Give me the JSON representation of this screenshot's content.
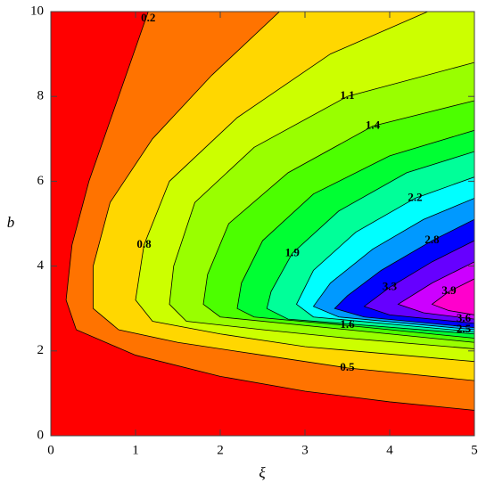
{
  "chart_data": {
    "type": "contour",
    "x_label": "ξ",
    "y_label": "b",
    "xlim": [
      0,
      5
    ],
    "ylim": [
      0,
      10
    ],
    "xticks": [
      0,
      1,
      2,
      3,
      4,
      5
    ],
    "yticks": [
      0,
      2,
      4,
      6,
      8,
      10
    ],
    "background_color": "#ff0000",
    "contours": [
      {
        "level": 0.2,
        "color": "#ff7300",
        "x": [
          1.15,
          0.8,
          0.45,
          0.25,
          0.18,
          0.3,
          1,
          2,
          3,
          4,
          5
        ],
        "y": [
          10,
          8,
          6,
          4.5,
          3.2,
          2.5,
          1.9,
          1.4,
          1.05,
          0.8,
          0.6
        ]
      },
      {
        "level": 0.5,
        "color": "#ffd700",
        "x": [
          2.7,
          1.9,
          1.2,
          0.7,
          0.5,
          0.5,
          0.8,
          1.5,
          2.5,
          3.5,
          5
        ],
        "y": [
          10,
          8.5,
          7,
          5.5,
          4,
          3,
          2.5,
          2.2,
          1.9,
          1.6,
          1.3
        ]
      },
      {
        "level": 0.8,
        "color": "#ccff00",
        "x": [
          4.45,
          3.3,
          2.2,
          1.4,
          1.1,
          1.0,
          1.2,
          2,
          3,
          5
        ],
        "y": [
          10,
          9,
          7.5,
          6,
          4.5,
          3.2,
          2.7,
          2.4,
          2.1,
          1.75
        ]
      },
      {
        "level": 1.1,
        "color": "#99ff00",
        "x": [
          5,
          3.5,
          2.4,
          1.7,
          1.45,
          1.4,
          1.6,
          2.5,
          3.5,
          5
        ],
        "y": [
          8.8,
          8,
          6.8,
          5.5,
          4,
          3.1,
          2.7,
          2.5,
          2.3,
          2.05
        ]
      },
      {
        "level": 1.4,
        "color": "#4cff00",
        "x": [
          5,
          3.8,
          2.8,
          2.1,
          1.85,
          1.8,
          2,
          3,
          5
        ],
        "y": [
          7.9,
          7.3,
          6.2,
          5,
          3.8,
          3.1,
          2.8,
          2.6,
          2.2
        ]
      },
      {
        "level": 1.6,
        "color": "#00ff33",
        "x": [
          5,
          4,
          3.1,
          2.5,
          2.25,
          2.2,
          2.4,
          3.5,
          5
        ],
        "y": [
          7.2,
          6.6,
          5.7,
          4.6,
          3.6,
          3,
          2.8,
          2.6,
          2.3
        ]
      },
      {
        "level": 1.9,
        "color": "#00ff99",
        "x": [
          5,
          4.2,
          3.4,
          2.85,
          2.6,
          2.55,
          2.8,
          5
        ],
        "y": [
          6.7,
          6.2,
          5.3,
          4.3,
          3.4,
          3,
          2.75,
          2.4
        ]
      },
      {
        "level": 2.2,
        "color": "#00ffff",
        "x": [
          5,
          4.3,
          3.6,
          3.1,
          2.9,
          3.1,
          5
        ],
        "y": [
          6.1,
          5.6,
          4.8,
          3.9,
          3.1,
          2.8,
          2.45
        ]
      },
      {
        "level": 2.5,
        "color": "#0099ff",
        "x": [
          5,
          4.4,
          3.8,
          3.3,
          3.1,
          3.4,
          5
        ],
        "y": [
          5.6,
          5.1,
          4.4,
          3.6,
          3.05,
          2.8,
          2.5
        ]
      },
      {
        "level": 2.8,
        "color": "#0000ff",
        "x": [
          5,
          4.5,
          3.9,
          3.5,
          3.35,
          3.7,
          5
        ],
        "y": [
          5.1,
          4.6,
          3.9,
          3.3,
          3.0,
          2.8,
          2.55
        ]
      },
      {
        "level": 3.3,
        "color": "#6600ff",
        "x": [
          5,
          4.5,
          4.0,
          3.7,
          4,
          5
        ],
        "y": [
          4.6,
          4.1,
          3.5,
          3.05,
          2.85,
          2.65
        ]
      },
      {
        "level": 3.6,
        "color": "#cc00ff",
        "x": [
          5,
          4.5,
          4.1,
          4.4,
          5
        ],
        "y": [
          4.1,
          3.6,
          3.1,
          2.9,
          2.75
        ]
      },
      {
        "level": 3.9,
        "color": "#ff00cc",
        "x": [
          5,
          4.7,
          4.5,
          4.7,
          5
        ],
        "y": [
          3.7,
          3.4,
          3.1,
          2.95,
          2.85
        ]
      }
    ]
  }
}
